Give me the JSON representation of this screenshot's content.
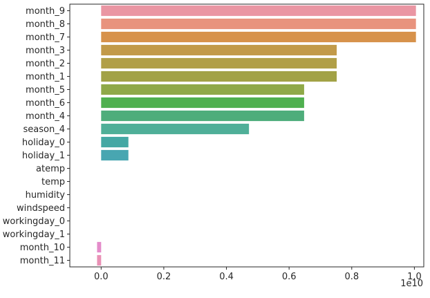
{
  "chart_data": {
    "type": "bar",
    "orientation": "horizontal",
    "title": "",
    "xlabel": "",
    "ylabel": "",
    "x_offset_label": "1e10",
    "xlim": [
      -0.1,
      1.03
    ],
    "xticks": [
      0.0,
      0.2,
      0.4,
      0.6,
      0.8,
      1.0
    ],
    "xtick_labels": [
      "0.0",
      "0.2",
      "0.4",
      "0.6",
      "0.8",
      "1.0"
    ],
    "grid": false,
    "categories": [
      "month_9",
      "month_8",
      "month_7",
      "month_3",
      "month_2",
      "month_1",
      "month_5",
      "month_6",
      "month_4",
      "season_4",
      "holiday_0",
      "holiday_1",
      "atemp",
      "temp",
      "humidity",
      "windspeed",
      "workingday_0",
      "workingday_1",
      "month_10",
      "month_11"
    ],
    "values": [
      1.005,
      1.005,
      1.005,
      0.752,
      0.752,
      0.752,
      0.648,
      0.648,
      0.648,
      0.472,
      0.087,
      0.087,
      0.0,
      0.0,
      0.0,
      0.0,
      0.0,
      0.0,
      -0.013,
      -0.013
    ],
    "value_scale": 10000000000,
    "colors": [
      "#ea96a3",
      "#e8937e",
      "#d7924b",
      "#c29a49",
      "#b19f47",
      "#a2a246",
      "#8fa948",
      "#4fb04f",
      "#4ead7b",
      "#4faf98",
      "#44a8a4",
      "#48a6b1",
      "#4ca6bf",
      "#55a7d4",
      "#84a3e0",
      "#aa98e6",
      "#c58ee6",
      "#dd89dc",
      "#e48cca",
      "#e991b6"
    ]
  }
}
